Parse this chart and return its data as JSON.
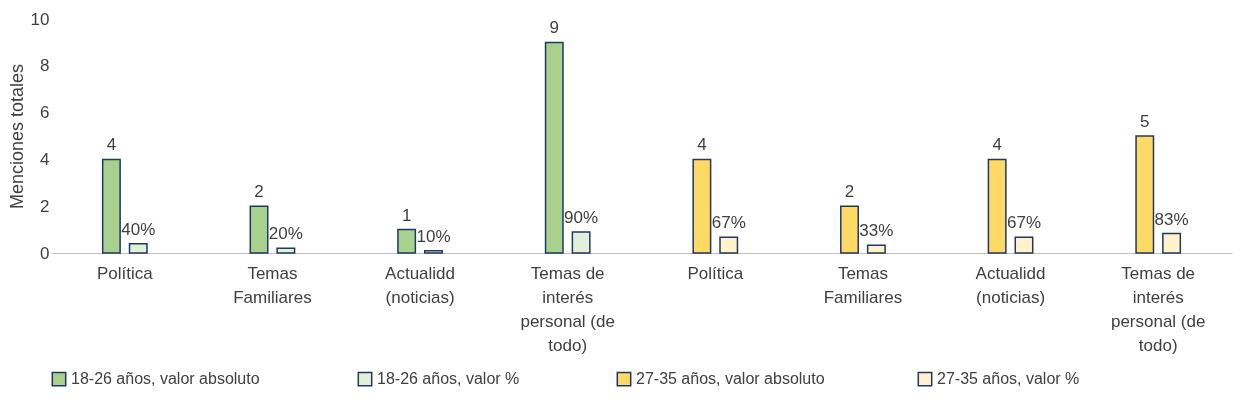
{
  "chart_data": {
    "type": "bar",
    "ylabel": "Menciones totales",
    "categories": [
      "Política",
      "Temas Familiares",
      "Actualidd (noticias)",
      "Temas de interés personal (de todo)",
      "Política",
      "Temas Familiares",
      "Actualidd (noticias)",
      "Temas de interés personal (de todo)"
    ],
    "series": [
      {
        "name": "18-26 años,  valor absoluto",
        "color": "#a9d18e",
        "values": [
          4,
          2,
          1,
          9,
          null,
          null,
          null,
          null
        ],
        "value_labels": [
          "4",
          "2",
          "1",
          "9",
          null,
          null,
          null,
          null
        ]
      },
      {
        "name": "18-26 años,  valor %",
        "color": "#e2efd9",
        "values": [
          0.4,
          0.2,
          0.1,
          0.9,
          null,
          null,
          null,
          null
        ],
        "value_labels": [
          "40%",
          "20%",
          "10%",
          "90%",
          null,
          null,
          null,
          null
        ]
      },
      {
        "name": "27-35 años, valor absoluto",
        "color": "#ffd966",
        "values": [
          null,
          null,
          null,
          null,
          4,
          2,
          4,
          5
        ],
        "value_labels": [
          null,
          null,
          null,
          null,
          "4",
          "2",
          "4",
          "5"
        ]
      },
      {
        "name": "27-35 años, valor  %",
        "color": "#fff2cc",
        "values": [
          null,
          null,
          null,
          null,
          0.67,
          0.33,
          0.67,
          0.83
        ],
        "value_labels": [
          null,
          null,
          null,
          null,
          "67%",
          "33%",
          "67%",
          "83%"
        ]
      }
    ],
    "ylim": [
      0,
      10
    ],
    "yticks": [
      0,
      2,
      4,
      6,
      8,
      10
    ],
    "grid": false,
    "legend": "bottom"
  }
}
